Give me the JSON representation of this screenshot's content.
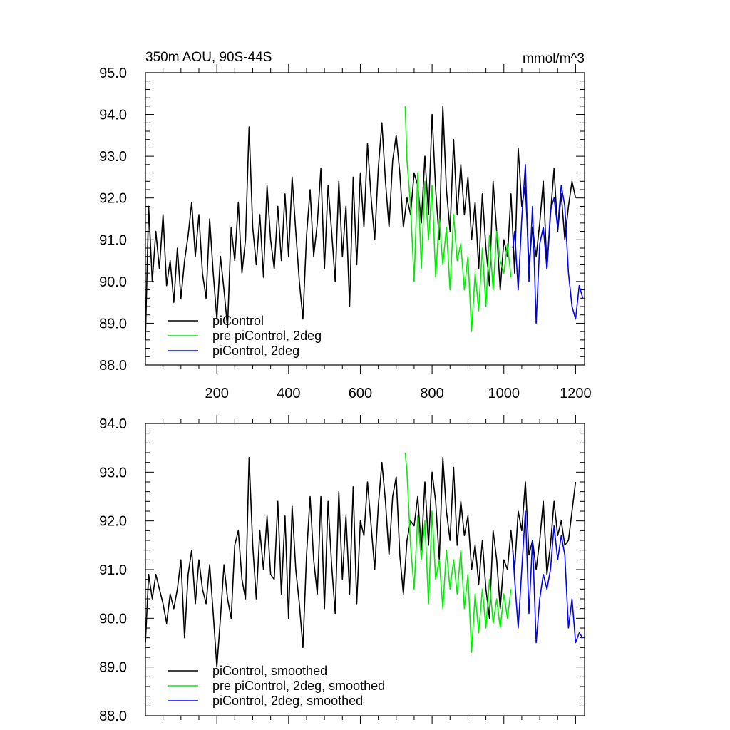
{
  "chart_data": [
    {
      "type": "line",
      "title": "350m AOU, 90S-44S",
      "units_label": "mmol/m^3",
      "xlabel": "",
      "ylabel": "",
      "xlim": [
        1,
        1225
      ],
      "ylim": [
        88.0,
        95.0
      ],
      "yticks": [
        "88.0",
        "89.0",
        "90.0",
        "91.0",
        "92.0",
        "93.0",
        "94.0",
        "95.0"
      ],
      "xticks": [
        "200",
        "400",
        "600",
        "800",
        "1000",
        "1200"
      ],
      "grid": false,
      "legend_position": "bottom-left",
      "series": [
        {
          "name": "piControl",
          "color": "#000000",
          "x": [
            1,
            10,
            20,
            30,
            40,
            50,
            60,
            70,
            80,
            90,
            100,
            110,
            120,
            130,
            140,
            150,
            160,
            170,
            180,
            190,
            200,
            210,
            220,
            230,
            240,
            250,
            260,
            270,
            280,
            290,
            300,
            310,
            320,
            330,
            340,
            350,
            360,
            370,
            380,
            390,
            400,
            410,
            420,
            430,
            440,
            450,
            460,
            470,
            480,
            490,
            500,
            510,
            520,
            530,
            540,
            550,
            560,
            570,
            580,
            590,
            600,
            610,
            620,
            630,
            640,
            650,
            660,
            670,
            680,
            690,
            700,
            710,
            720,
            730,
            740,
            750,
            760,
            770,
            780,
            790,
            800,
            810,
            820,
            830,
            840,
            850,
            860,
            870,
            880,
            890,
            900,
            910,
            920,
            930,
            940,
            950,
            960,
            970,
            980,
            990,
            1000,
            1010,
            1020,
            1030,
            1040,
            1050,
            1060,
            1070,
            1080,
            1090,
            1100,
            1110,
            1120,
            1130,
            1140,
            1150,
            1160,
            1170,
            1180,
            1190,
            1200
          ],
          "values": [
            88.6,
            91.8,
            90.0,
            91.2,
            90.3,
            91.6,
            89.9,
            90.5,
            89.5,
            90.8,
            89.6,
            90.5,
            91.1,
            91.9,
            90.6,
            91.6,
            90.2,
            89.6,
            91.5,
            90.2,
            89.1,
            90.6,
            89.8,
            88.9,
            91.3,
            90.5,
            91.9,
            90.2,
            91.0,
            93.7,
            91.3,
            90.4,
            91.6,
            90.1,
            92.3,
            91.0,
            90.3,
            91.8,
            90.5,
            92.1,
            90.6,
            92.5,
            91.2,
            90.0,
            89.1,
            91.1,
            92.2,
            90.6,
            91.4,
            92.7,
            90.3,
            92.3,
            91.2,
            90.0,
            92.4,
            90.6,
            91.8,
            89.4,
            92.5,
            90.4,
            92.6,
            91.3,
            93.3,
            92.0,
            91.0,
            92.7,
            93.8,
            92.4,
            91.3,
            92.9,
            93.5,
            92.6,
            91.3,
            92.0,
            91.6,
            92.6,
            92.3,
            91.4,
            93.0,
            91.6,
            94.0,
            92.2,
            91.0,
            94.2,
            92.2,
            91.2,
            93.4,
            91.6,
            92.8,
            91.6,
            92.5,
            91.0,
            91.9,
            90.3,
            92.1,
            90.8,
            89.9,
            92.4,
            91.2,
            89.8,
            91.0,
            90.6,
            92.1,
            90.2,
            93.2,
            91.8,
            92.3,
            90.4,
            91.3,
            90.6,
            91.4,
            92.4,
            90.3,
            91.6,
            92.7,
            91.2,
            92.1,
            91.0,
            91.8,
            92.4,
            92.0
          ]
        },
        {
          "name": "pre piControl, 2deg",
          "color": "#00ee00",
          "x": [
            725,
            730,
            740,
            750,
            760,
            770,
            780,
            790,
            800,
            810,
            820,
            830,
            840,
            850,
            860,
            870,
            880,
            890,
            900,
            910,
            920,
            930,
            940,
            950,
            960,
            970,
            980,
            990,
            1000,
            1010,
            1020
          ],
          "values": [
            94.2,
            92.9,
            91.8,
            90.0,
            92.6,
            90.3,
            92.4,
            91.0,
            92.3,
            90.1,
            91.5,
            90.4,
            91.3,
            89.8,
            91.6,
            90.5,
            90.9,
            89.8,
            90.6,
            88.8,
            90.2,
            89.3,
            90.8,
            89.4,
            91.1,
            89.8,
            91.2,
            90.5,
            90.2,
            90.9,
            90.1
          ]
        },
        {
          "name": "piControl, 2deg",
          "color": "#0000ff",
          "x": [
            1025,
            1030,
            1040,
            1050,
            1060,
            1070,
            1080,
            1090,
            1100,
            1110,
            1120,
            1130,
            1140,
            1150,
            1160,
            1170,
            1180,
            1190,
            1200,
            1210,
            1220
          ],
          "values": [
            90.8,
            91.2,
            89.8,
            91.5,
            92.8,
            90.0,
            91.8,
            89.0,
            90.9,
            91.3,
            90.3,
            91.7,
            92.0,
            91.3,
            92.3,
            91.8,
            90.2,
            89.4,
            89.1,
            89.9,
            89.6
          ]
        }
      ]
    },
    {
      "type": "line",
      "title": "",
      "xlabel": "",
      "ylabel": "",
      "xlim": [
        1,
        1225
      ],
      "ylim": [
        88.0,
        94.0
      ],
      "yticks": [
        "88.0",
        "89.0",
        "90.0",
        "91.0",
        "92.0",
        "93.0",
        "94.0"
      ],
      "grid": false,
      "legend_position": "bottom-left",
      "series": [
        {
          "name": "piControl, smoothed",
          "color": "#000000",
          "x": [
            1,
            10,
            20,
            30,
            40,
            50,
            60,
            70,
            80,
            90,
            100,
            110,
            120,
            130,
            140,
            150,
            160,
            170,
            180,
            190,
            200,
            210,
            220,
            230,
            240,
            250,
            260,
            270,
            280,
            290,
            300,
            310,
            320,
            330,
            340,
            350,
            360,
            370,
            380,
            390,
            400,
            410,
            420,
            430,
            440,
            450,
            460,
            470,
            480,
            490,
            500,
            510,
            520,
            530,
            540,
            550,
            560,
            570,
            580,
            590,
            600,
            610,
            620,
            630,
            640,
            650,
            660,
            670,
            680,
            690,
            700,
            710,
            720,
            730,
            740,
            750,
            760,
            770,
            780,
            790,
            800,
            810,
            820,
            830,
            840,
            850,
            860,
            870,
            880,
            890,
            900,
            910,
            920,
            930,
            940,
            950,
            960,
            970,
            980,
            990,
            1000,
            1010,
            1020,
            1030,
            1040,
            1050,
            1060,
            1070,
            1080,
            1090,
            1100,
            1110,
            1120,
            1130,
            1140,
            1150,
            1160,
            1170,
            1180,
            1190,
            1200
          ],
          "values": [
            89.5,
            90.9,
            90.4,
            90.9,
            90.6,
            90.3,
            89.9,
            90.5,
            90.2,
            90.6,
            91.2,
            89.6,
            90.9,
            91.4,
            90.3,
            91.2,
            90.6,
            90.3,
            91.1,
            90.1,
            89.0,
            90.0,
            91.1,
            90.4,
            90.0,
            91.5,
            91.8,
            90.8,
            90.4,
            93.3,
            91.5,
            90.4,
            91.8,
            91.0,
            92.1,
            90.9,
            90.8,
            92.4,
            90.5,
            92.1,
            90.0,
            92.3,
            91.0,
            90.3,
            89.4,
            91.3,
            92.5,
            91.2,
            90.5,
            92.5,
            90.2,
            92.4,
            91.1,
            90.1,
            92.6,
            90.8,
            92.1,
            90.5,
            92.7,
            90.3,
            92.0,
            91.7,
            92.8,
            91.9,
            91.0,
            92.3,
            93.2,
            92.4,
            91.3,
            92.5,
            92.9,
            91.3,
            90.5,
            91.6,
            92.0,
            91.9,
            92.5,
            91.4,
            92.8,
            91.5,
            93.0,
            92.4,
            91.2,
            93.3,
            92.2,
            91.6,
            93.1,
            91.5,
            92.4,
            91.7,
            92.1,
            91.0,
            91.5,
            90.7,
            91.6,
            90.6,
            90.0,
            91.8,
            91.2,
            90.2,
            91.2,
            91.0,
            91.8,
            91.0,
            92.2,
            91.8,
            92.8,
            91.3,
            91.6,
            91.0,
            91.6,
            92.4,
            90.9,
            91.5,
            92.4,
            91.7,
            92.0,
            91.5,
            91.6,
            92.2,
            92.8
          ]
        },
        {
          "name": "pre piControl, 2deg, smoothed",
          "color": "#00ee00",
          "x": [
            725,
            730,
            740,
            750,
            760,
            770,
            780,
            790,
            800,
            810,
            820,
            830,
            840,
            850,
            860,
            870,
            880,
            890,
            900,
            910,
            920,
            930,
            940,
            950,
            960,
            970,
            980,
            990,
            1000,
            1010,
            1020
          ],
          "values": [
            93.4,
            93.0,
            91.5,
            90.6,
            92.1,
            91.2,
            92.0,
            90.3,
            92.2,
            90.8,
            91.2,
            90.2,
            91.4,
            90.6,
            91.2,
            90.5,
            91.4,
            90.2,
            90.9,
            89.3,
            90.5,
            89.7,
            90.6,
            89.8,
            90.8,
            89.9,
            90.4,
            89.8,
            90.5,
            90.0,
            90.6
          ]
        },
        {
          "name": "piControl, 2deg, smoothed",
          "color": "#0000ff",
          "x": [
            1025,
            1030,
            1040,
            1050,
            1060,
            1070,
            1080,
            1090,
            1100,
            1110,
            1120,
            1130,
            1140,
            1150,
            1160,
            1170,
            1180,
            1190,
            1200,
            1210,
            1220
          ],
          "values": [
            91.4,
            90.8,
            89.8,
            91.0,
            92.2,
            90.1,
            91.6,
            89.5,
            90.4,
            90.9,
            90.6,
            91.0,
            91.9,
            91.2,
            91.7,
            91.3,
            89.8,
            90.4,
            89.5,
            89.7,
            89.6
          ]
        }
      ]
    }
  ]
}
